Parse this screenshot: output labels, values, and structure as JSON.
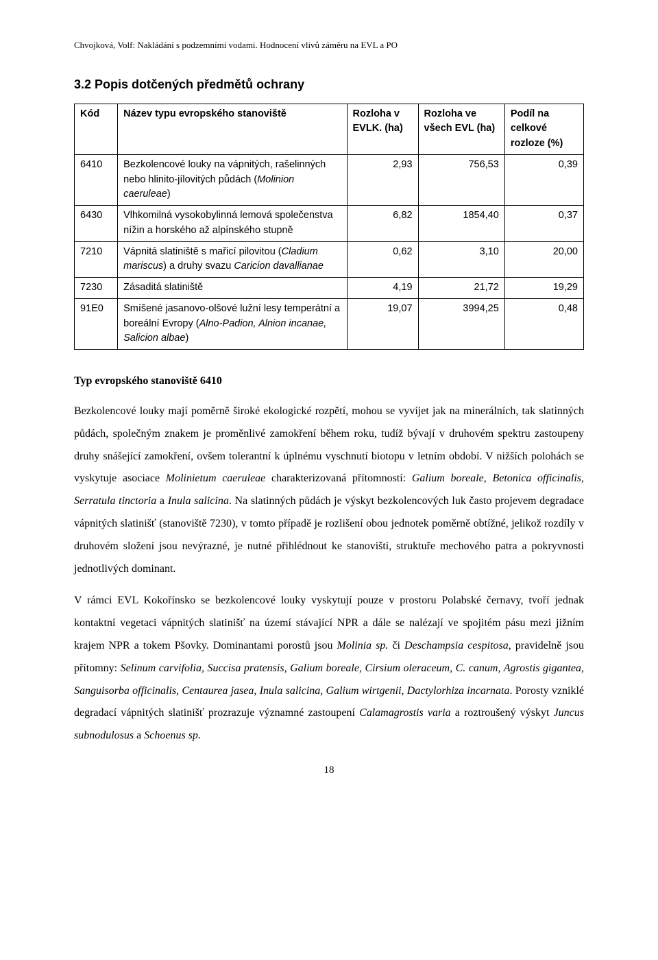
{
  "runningHead": "Chvojková, Volf: Nakládání s podzemními vodami. Hodnocení vlivů záměru na EVL a PO",
  "sectionTitle": "3.2 Popis dotčených předmětů ochrany",
  "table": {
    "columns": [
      "Kód",
      "Název typu evropského stanoviště",
      "Rozloha v EVLK. (ha)",
      "Rozloha ve všech EVL (ha)",
      "Podíl na celkové rozloze (%)"
    ],
    "rows": [
      {
        "kod": "6410",
        "name_pre": "Bezkolencové louky na vápnitých, rašelinných nebo hlinito-jílovitých půdách (",
        "name_it": "Molinion caeruleae",
        "name_post": ")",
        "r1": "2,93",
        "r2": "756,53",
        "r3": "0,39"
      },
      {
        "kod": "6430",
        "name_pre": "Vlhkomilná vysokobylinná lemová společenstva nížin a horského až alpínského stupně",
        "name_it": "",
        "name_post": "",
        "r1": "6,82",
        "r2": "1854,40",
        "r3": "0,37"
      },
      {
        "kod": "7210",
        "name_pre": "Vápnitá slatiniště s mařicí pilovitou (",
        "name_it": "Cladium mariscus",
        "name_post": ") a druhy svazu ",
        "name_it2": "Caricion davallianae",
        "r1": "0,62",
        "r2": "3,10",
        "r3": "20,00"
      },
      {
        "kod": "7230",
        "name_pre": "Zásaditá slatiniště",
        "name_it": "",
        "name_post": "",
        "r1": "4,19",
        "r2": "21,72",
        "r3": "19,29"
      },
      {
        "kod": "91E0",
        "name_pre": "Smíšené jasanovo-olšové lužní lesy temperátní a boreální Evropy (",
        "name_it": "Alno-Padion, Alnion incanae, Salicion albae",
        "name_post": ")",
        "r1": "19,07",
        "r2": "3994,25",
        "r3": "0,48"
      }
    ]
  },
  "subhead": "Typ evropského stanoviště 6410",
  "p1": {
    "t1": "Bezkolencové louky mají poměrně široké ekologické rozpětí, mohou se vyvíjet jak na minerálních, tak slatinných půdách, společným znakem je proměnlivé zamokření během roku, tudíž bývají v druhovém spektru zastoupeny druhy snášející zamokření, ovšem tolerantní k úplnému vyschnutí biotopu v letním období. V nižších polohách se vyskytuje asociace ",
    "i1": "Molinietum caeruleae",
    "t2": " charakterizovaná přítomností: ",
    "i2": "Galium boreale, Betonica officinalis, Serratula tinctoria",
    "t3": " a ",
    "i3": "Inula salicina",
    "t4": ". Na slatinných půdách je výskyt bezkolencových luk často projevem degradace vápnitých slatinišť (stanoviště 7230), v tomto případě je rozlišení obou jednotek poměrně obtížné, jelikož rozdíly v druhovém složení jsou nevýrazné, je nutné přihlédnout ke stanovišti, struktuře mechového patra a pokryvnosti jednotlivých dominant."
  },
  "p2": {
    "t1": "V rámci EVL Kokořínsko se bezkolencové louky vyskytují pouze v prostoru Polabské černavy, tvoří jednak kontaktní vegetaci vápnitých slatinišť na území stávající NPR a dále se nalézají ve spojitém pásu mezi jižním krajem NPR a tokem Pšovky. Dominantami porostů jsou ",
    "i1": "Molinia sp.",
    "t2": " či ",
    "i2": "Deschampsia cespitosa",
    "t3": ", pravidelně jsou přítomny: ",
    "i3": "Selinum carvifolia, Succisa pratensis, Galium boreale, Cirsium oleraceum, C. canum, Agrostis gigantea, Sanguisorba officinalis, Centaurea jasea, Inula salicina, Galium wirtgenii, Dactylorhiza incarnata",
    "t4": ". Porosty vzniklé degradací vápnitých slatinišť prozrazuje významné zastoupení ",
    "i4": "Calamagrostis varia",
    "t5": " a roztroušený výskyt ",
    "i5": "Juncus subnodulosus",
    "t6": " a ",
    "i6": "Schoenus sp.",
    "t7": ""
  },
  "pageNumber": "18"
}
